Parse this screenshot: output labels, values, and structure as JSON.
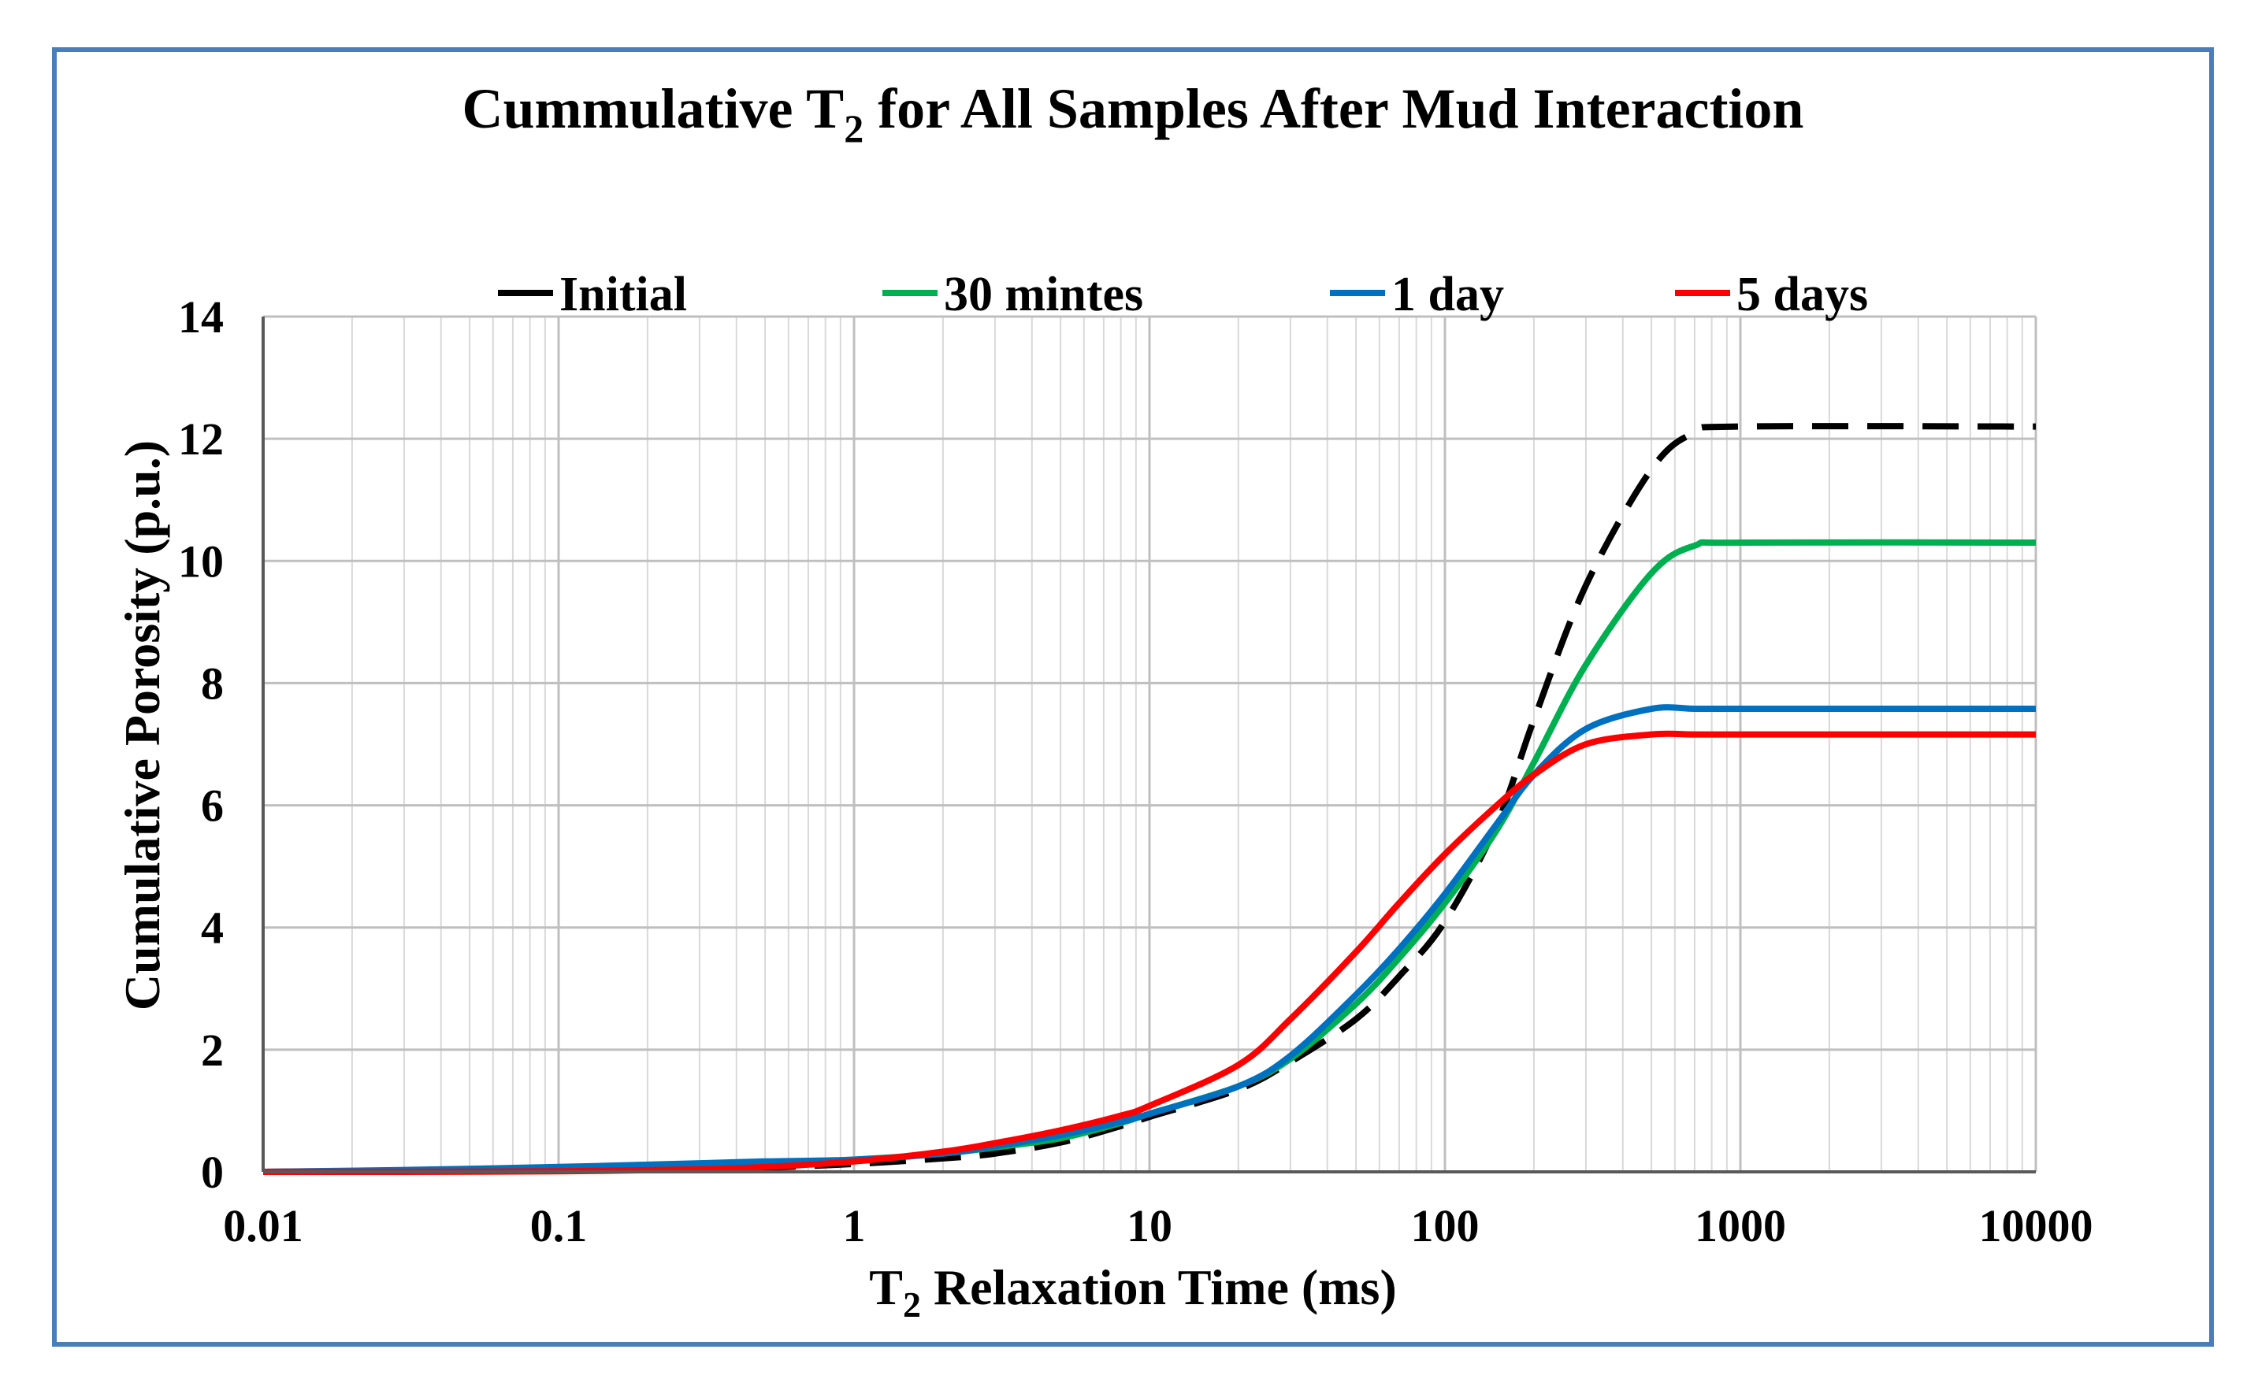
{
  "chart_data": {
    "type": "line",
    "title": {
      "prefix": "Cummulative T",
      "subscript": "2",
      "suffix": " for All Samples After Mud Interaction"
    },
    "xlabel": {
      "prefix": "T",
      "subscript": "2",
      "suffix": " Relaxation Time (ms)"
    },
    "ylabel": "Cumulative Porosity (p.u.)",
    "xscale": "log",
    "xlim": [
      0.01,
      10000
    ],
    "ylim": [
      0,
      14
    ],
    "x_ticks": [
      "0.01",
      "0.1",
      "1",
      "10",
      "100",
      "1000",
      "10000"
    ],
    "y_ticks": [
      "0",
      "2",
      "4",
      "6",
      "8",
      "10",
      "12",
      "14"
    ],
    "grid": true,
    "legend_position": "top",
    "x": [
      0.01,
      0.03,
      0.1,
      0.3,
      0.5,
      1,
      2,
      3,
      5,
      8,
      10,
      20,
      30,
      50,
      70,
      100,
      150,
      200,
      300,
      500,
      700,
      1000,
      10000
    ],
    "series": [
      {
        "name": "Initial",
        "color": "#000000",
        "dash": "dashed",
        "values": [
          0,
          0.01,
          0.02,
          0.05,
          0.07,
          0.13,
          0.22,
          0.3,
          0.48,
          0.75,
          0.9,
          1.35,
          1.8,
          2.5,
          3.2,
          4.1,
          5.7,
          7.4,
          9.6,
          11.5,
          12.1,
          12.2,
          12.2
        ]
      },
      {
        "name": "30 mintes",
        "color": "#00b050",
        "dash": "solid",
        "values": [
          0,
          0.02,
          0.05,
          0.1,
          0.14,
          0.2,
          0.3,
          0.4,
          0.55,
          0.8,
          0.95,
          1.4,
          1.85,
          2.75,
          3.5,
          4.4,
          5.6,
          6.7,
          8.3,
          9.8,
          10.25,
          10.3,
          10.3
        ]
      },
      {
        "name": "1 day",
        "color": "#0070c0",
        "dash": "solid",
        "values": [
          0,
          0.03,
          0.08,
          0.14,
          0.17,
          0.2,
          0.3,
          0.42,
          0.6,
          0.82,
          0.95,
          1.4,
          1.9,
          2.9,
          3.65,
          4.55,
          5.7,
          6.5,
          7.25,
          7.58,
          7.58,
          7.58,
          7.58
        ]
      },
      {
        "name": "5 days",
        "color": "#ff0000",
        "dash": "solid",
        "values": [
          0,
          0,
          0.01,
          0.04,
          0.08,
          0.17,
          0.33,
          0.47,
          0.68,
          0.92,
          1.08,
          1.75,
          2.5,
          3.6,
          4.4,
          5.2,
          6.0,
          6.5,
          7.0,
          7.16,
          7.16,
          7.16,
          7.16
        ]
      }
    ]
  }
}
